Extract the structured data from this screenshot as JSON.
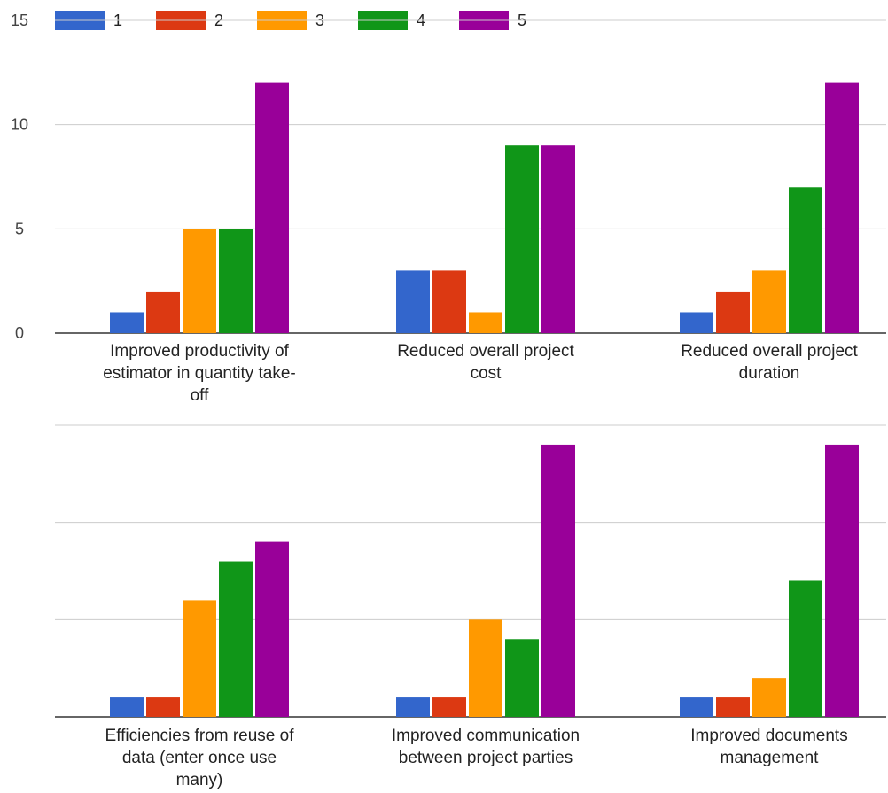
{
  "chart_data": [
    {
      "type": "bar",
      "categories": [
        "Improved productivity of estimator in quantity take-off",
        "Reduced overall project cost",
        "Reduced overall project duration"
      ],
      "category_label_lines": [
        [
          "Improved productivity of",
          "estimator in quantity take-",
          "off"
        ],
        [
          "Reduced overall project",
          "cost"
        ],
        [
          "Reduced overall project",
          "duration"
        ]
      ],
      "series": [
        {
          "name": "1",
          "values": [
            1,
            3,
            1
          ]
        },
        {
          "name": "2",
          "values": [
            2,
            3,
            2
          ]
        },
        {
          "name": "3",
          "values": [
            5,
            1,
            3
          ]
        },
        {
          "name": "4",
          "values": [
            5,
            9,
            7
          ]
        },
        {
          "name": "5",
          "values": [
            12,
            9,
            12
          ]
        }
      ],
      "ylim": [
        0,
        15
      ],
      "yticks": [
        "0",
        "5",
        "10",
        "15"
      ],
      "grid": true,
      "legend": "top"
    },
    {
      "type": "bar",
      "categories": [
        "Efficiencies from reuse of data (enter once use many)",
        "Improved communication between project parties",
        "Improved documents management"
      ],
      "category_label_lines": [
        [
          "Efficiencies from reuse of",
          "data (enter once use",
          "many)"
        ],
        [
          "Improved communication",
          "between project parties"
        ],
        [
          "Improved documents",
          "management"
        ]
      ],
      "series": [
        {
          "name": "1",
          "values": [
            1,
            1,
            1
          ]
        },
        {
          "name": "2",
          "values": [
            1,
            1,
            1
          ]
        },
        {
          "name": "3",
          "values": [
            6,
            5,
            2
          ]
        },
        {
          "name": "4",
          "values": [
            8,
            4,
            7
          ]
        },
        {
          "name": "5",
          "values": [
            9,
            14,
            14
          ]
        }
      ],
      "ylim": [
        0,
        15
      ],
      "grid": true
    }
  ],
  "colors": [
    "#3366cc",
    "#dc3912",
    "#ff9900",
    "#109618",
    "#990099"
  ]
}
